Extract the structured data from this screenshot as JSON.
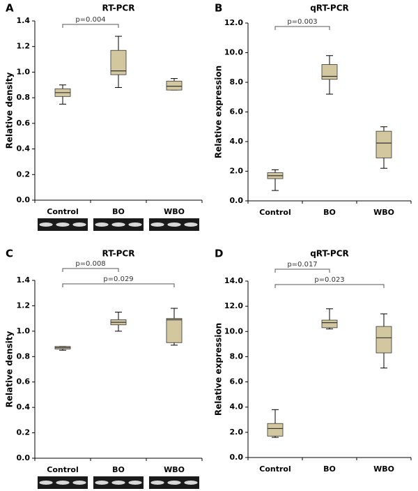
{
  "chart_data": [
    {
      "type": "box",
      "label": "A",
      "title": "RT-PCR",
      "y_label": "Relative density",
      "categories": [
        "Control",
        "BO",
        "WBO"
      ],
      "color": "#d3c79f",
      "boxes": [
        {
          "min": 0.75,
          "q1": 0.81,
          "median": 0.84,
          "q3": 0.87,
          "max": 0.9
        },
        {
          "min": 0.88,
          "q1": 0.98,
          "median": 1.01,
          "q3": 1.17,
          "max": 1.28
        },
        {
          "min": 0.86,
          "q1": 0.86,
          "median": 0.89,
          "q3": 0.93,
          "max": 0.95
        }
      ],
      "ylim": [
        0,
        1.4
      ],
      "yticks": [
        {
          "value": 0,
          "label": "0.0"
        },
        0.2,
        0.4,
        0.6,
        0.8,
        {
          "value": 1,
          "label": "1.0"
        },
        1.2,
        1.4
      ],
      "annotations": [
        {
          "text": "p=0.004",
          "between": [
            "Control",
            "BO"
          ]
        }
      ]
    },
    {
      "type": "box",
      "label": "B",
      "title": "qRT-PCR",
      "y_label": "Relative expression",
      "categories": [
        "Control",
        "BO",
        "WBO"
      ],
      "color": "#d3c79f",
      "boxes": [
        {
          "min": 0.7,
          "q1": 1.5,
          "median": 1.7,
          "q3": 1.9,
          "max": 2.1
        },
        {
          "min": 7.2,
          "q1": 8.2,
          "median": 8.4,
          "q3": 9.2,
          "max": 9.8
        },
        {
          "min": 2.2,
          "q1": 2.9,
          "median": 3.9,
          "q3": 4.7,
          "max": 5.0
        }
      ],
      "ylim": [
        0,
        12
      ],
      "yticks": [
        {
          "value": 0,
          "label": "0.0"
        },
        {
          "value": 2,
          "label": "2.0"
        },
        {
          "value": 4,
          "label": "4.0"
        },
        {
          "value": 6,
          "label": "6.0"
        },
        {
          "value": 8,
          "label": "8.0"
        },
        {
          "value": 10,
          "label": "10.0"
        },
        {
          "value": 12,
          "label": "12.0"
        }
      ],
      "annotations": [
        {
          "text": "p=0.003",
          "between": [
            "Control",
            "BO"
          ]
        }
      ]
    },
    {
      "type": "box",
      "label": "C",
      "title": "RT-PCR",
      "y_label": "Relative density",
      "categories": [
        "Control",
        "BO",
        "WBO"
      ],
      "color": "#d3c79f",
      "boxes": [
        {
          "min": 0.85,
          "q1": 0.86,
          "median": 0.87,
          "q3": 0.88,
          "max": 0.88
        },
        {
          "min": 1.0,
          "q1": 1.05,
          "median": 1.07,
          "q3": 1.09,
          "max": 1.15
        },
        {
          "min": 0.89,
          "q1": 0.91,
          "median": 1.09,
          "q3": 1.1,
          "max": 1.18
        }
      ],
      "ylim": [
        0,
        1.4
      ],
      "yticks": [
        {
          "value": 0,
          "label": "0.0"
        },
        0.2,
        0.4,
        0.6,
        0.8,
        {
          "value": 1,
          "label": "1.0"
        },
        1.2,
        1.4
      ],
      "annotations": [
        {
          "text": "p=0.008",
          "between": [
            "Control",
            "BO"
          ]
        },
        {
          "text": "p=0.029",
          "between": [
            "Control",
            "WBO"
          ]
        }
      ]
    },
    {
      "type": "box",
      "label": "D",
      "title": "qRT-PCR",
      "y_label": "Relative expression",
      "categories": [
        "Control",
        "BO",
        "WBO"
      ],
      "color": "#d3c79f",
      "boxes": [
        {
          "min": 1.6,
          "q1": 1.7,
          "median": 2.3,
          "q3": 2.7,
          "max": 3.8
        },
        {
          "min": 10.2,
          "q1": 10.3,
          "median": 10.7,
          "q3": 10.9,
          "max": 11.8
        },
        {
          "min": 7.1,
          "q1": 8.3,
          "median": 9.5,
          "q3": 10.4,
          "max": 11.4
        }
      ],
      "ylim": [
        0,
        14
      ],
      "yticks": [
        {
          "value": 0,
          "label": "0.0"
        },
        {
          "value": 2,
          "label": "2.0"
        },
        {
          "value": 4,
          "label": "4.0"
        },
        {
          "value": 6,
          "label": "6.0"
        },
        {
          "value": 8,
          "label": "8.0"
        },
        {
          "value": 10,
          "label": "10.0"
        },
        {
          "value": 12,
          "label": "12.0"
        },
        {
          "value": 14,
          "label": "14.0"
        }
      ],
      "annotations": [
        {
          "text": "p=0.017",
          "between": [
            "Control",
            "BO"
          ]
        },
        {
          "text": "p=0.023",
          "between": [
            "Control",
            "WBO"
          ]
        }
      ]
    }
  ]
}
